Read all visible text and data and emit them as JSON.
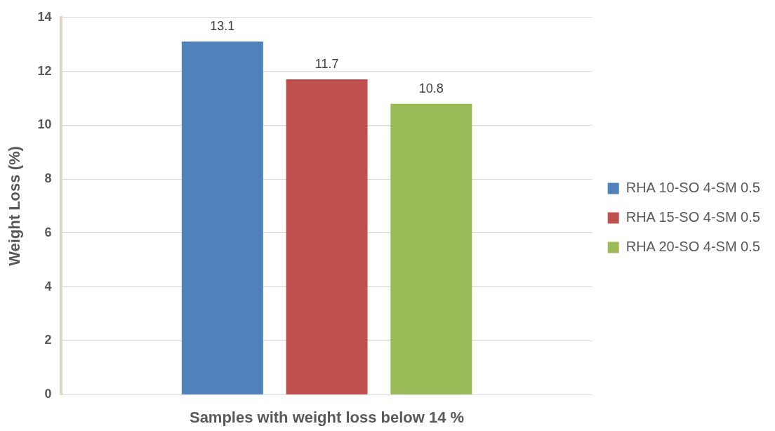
{
  "chart_data": {
    "type": "bar",
    "xlabel": "Samples with weight loss below 14 %",
    "ylabel": "Weight Loss (%)",
    "categories": [
      null
    ],
    "series": [
      {
        "name": "RHA 10-SO 4-SM 0.5",
        "color": "#4f81bd",
        "values": [
          13.1
        ]
      },
      {
        "name": "RHA 15-SO 4-SM 0.5",
        "color": "#c0504d",
        "values": [
          11.7
        ]
      },
      {
        "name": "RHA 20-SO 4-SM 0.5",
        "color": "#9bbb59",
        "values": [
          10.8
        ]
      }
    ],
    "ylim": [
      0,
      14
    ],
    "yticks": [
      0,
      2,
      4,
      6,
      8,
      10,
      12,
      14
    ],
    "grid": "y",
    "legend": "right",
    "data_labels": true
  }
}
